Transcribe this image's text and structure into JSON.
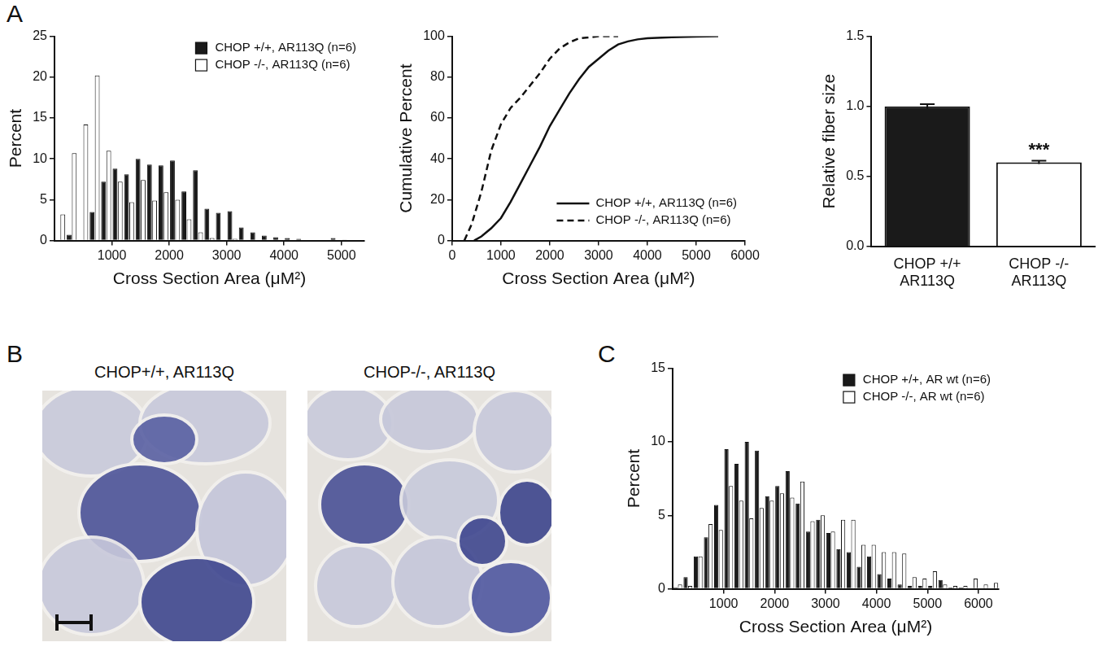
{
  "chart_data": [
    {
      "panel": "A",
      "type": "histogram",
      "x_label": "Cross Section Area (μM²)",
      "y_label": "Percent",
      "bins": [
        0,
        200,
        400,
        600,
        800,
        1000,
        1200,
        1400,
        1600,
        1800,
        2000,
        2200,
        2400,
        2600,
        2800,
        3000,
        3200,
        3400,
        3600,
        3800,
        4000,
        4200,
        4400,
        4600,
        4800,
        5000,
        5200,
        5400
      ],
      "series": [
        {
          "name": "CHOP +/+, AR113Q (n=6)",
          "color": "#1a1a1a",
          "values": [
            0,
            0.7,
            0,
            3.5,
            7.2,
            8.8,
            8.1,
            10.0,
            9.3,
            9.2,
            9.8,
            6.0,
            8.6,
            3.9,
            3.4,
            3.6,
            1.6,
            1.0,
            0.6,
            0.4,
            0.3,
            0.2,
            0,
            0,
            0.3,
            0.1,
            0
          ]
        },
        {
          "name": "CHOP -/-, AR113Q (n=6)",
          "color": "#ffffff",
          "values": [
            3.2,
            10.7,
            14.2,
            20.2,
            11.0,
            7.2,
            4.7,
            7.4,
            4.9,
            5.9,
            5.0,
            2.6,
            1.0,
            0.3,
            0,
            0.2,
            0,
            0,
            0,
            0,
            0,
            0,
            0,
            0,
            0,
            0,
            0
          ]
        }
      ],
      "xlim": [
        0,
        5400
      ],
      "xticks": [
        1000,
        2000,
        3000,
        4000,
        5000
      ],
      "ylim": [
        0,
        25
      ],
      "yticks": [
        0,
        5,
        10,
        15,
        20,
        25
      ],
      "grid": false,
      "legend": "upper right"
    },
    {
      "panel": "A",
      "type": "line",
      "x_label": "Cross Section Area (μM²)",
      "y_label": "Cumulative Percent",
      "series": [
        {
          "name": "CHOP +/+, AR113Q (n=6)",
          "color": "#111111",
          "line_style": "solid",
          "x": [
            450,
            600,
            800,
            1000,
            1200,
            1400,
            1600,
            1800,
            2000,
            2200,
            2400,
            2600,
            2800,
            3000,
            3200,
            3400,
            3600,
            3800,
            4000,
            4500,
            5000,
            5450
          ],
          "values": [
            0,
            2,
            6,
            11,
            19,
            28,
            37,
            46,
            56,
            64,
            72,
            79,
            85,
            89,
            93,
            96,
            97.5,
            98.5,
            99,
            99.5,
            99.8,
            100
          ]
        },
        {
          "name": "CHOP -/-, AR113Q (n=6)",
          "color": "#111111",
          "line_style": "dashed",
          "x": [
            250,
            400,
            600,
            800,
            1000,
            1200,
            1400,
            1600,
            1800,
            2000,
            2200,
            2400,
            2600,
            2800,
            3000,
            3400
          ],
          "values": [
            0,
            8,
            24,
            44,
            57,
            65,
            70,
            76,
            82,
            89,
            94,
            97,
            99,
            99.5,
            100,
            100
          ]
        }
      ],
      "xlim": [
        0,
        6000
      ],
      "xticks": [
        0,
        1000,
        2000,
        3000,
        4000,
        5000,
        6000
      ],
      "ylim": [
        0,
        100
      ],
      "yticks": [
        0,
        20,
        40,
        60,
        80,
        100
      ],
      "grid": false,
      "legend": "lower right"
    },
    {
      "panel": "A",
      "type": "bar",
      "y_label": "Relative fiber size",
      "categories": [
        "CHOP +/+\nAR113Q",
        "CHOP -/-\nAR113Q"
      ],
      "values": [
        1.0,
        0.6
      ],
      "errors": [
        0.015,
        0.012
      ],
      "colors": [
        "#1a1a1a",
        "#ffffff"
      ],
      "annotations": [
        {
          "text": "***",
          "category": "CHOP -/-\nAR113Q"
        }
      ],
      "ylim": [
        0,
        1.5
      ],
      "yticks": [
        {
          "value": 0,
          "label": "0.0"
        },
        {
          "value": 0.5,
          "label": "0.5"
        },
        {
          "value": 1,
          "label": "1.0"
        },
        {
          "value": 1.5,
          "label": "1.5"
        }
      ],
      "grid": false
    },
    {
      "panel": "C",
      "type": "histogram",
      "x_label": "Cross Section Area (μM²)",
      "y_label": "Percent",
      "bins": [
        0,
        200,
        400,
        600,
        800,
        1000,
        1200,
        1400,
        1600,
        1800,
        2000,
        2200,
        2400,
        2600,
        2800,
        3000,
        3200,
        3400,
        3600,
        3800,
        4000,
        4200,
        4400,
        4600,
        4800,
        5000,
        5200,
        5400,
        5600,
        5800,
        6000,
        6200,
        6400
      ],
      "series": [
        {
          "name": "CHOP +/+, AR wt (n=6)",
          "color": "#1a1a1a",
          "values": [
            0.1,
            0.8,
            2.2,
            3.5,
            5.7,
            9.5,
            8.5,
            10.0,
            9.4,
            6.3,
            7.0,
            8.0,
            5.8,
            3.9,
            4.7,
            3.8,
            2.7,
            2.5,
            1.5,
            2.2,
            1.0,
            0.7,
            0.3,
            0.2,
            0.2,
            0.2,
            0.6,
            0.1,
            0.1,
            0,
            0,
            0
          ]
        },
        {
          "name": "CHOP -/-, AR wt (n=6)",
          "color": "#ffffff",
          "values": [
            0.3,
            0.2,
            2.2,
            4.4,
            4.0,
            7.0,
            6.0,
            4.8,
            5.5,
            6.0,
            6.5,
            6.2,
            7.3,
            4.6,
            5.0,
            3.9,
            4.7,
            4.7,
            3.0,
            3.0,
            2.5,
            2.5,
            2.4,
            0.8,
            0.7,
            1.2,
            0.3,
            0.2,
            0.2,
            0.7,
            0.3,
            0.4
          ]
        }
      ],
      "xlim": [
        0,
        6400
      ],
      "xticks": [
        1000,
        2000,
        3000,
        4000,
        5000,
        6000
      ],
      "ylim": [
        0,
        15
      ],
      "yticks": [
        0,
        5,
        10,
        15
      ],
      "grid": false,
      "legend": "upper right"
    }
  ],
  "image_panel": {
    "panel": "B",
    "images": [
      {
        "title": "CHOP+/+, AR113Q"
      },
      {
        "title": "CHOP-/-, AR113Q"
      }
    ]
  }
}
